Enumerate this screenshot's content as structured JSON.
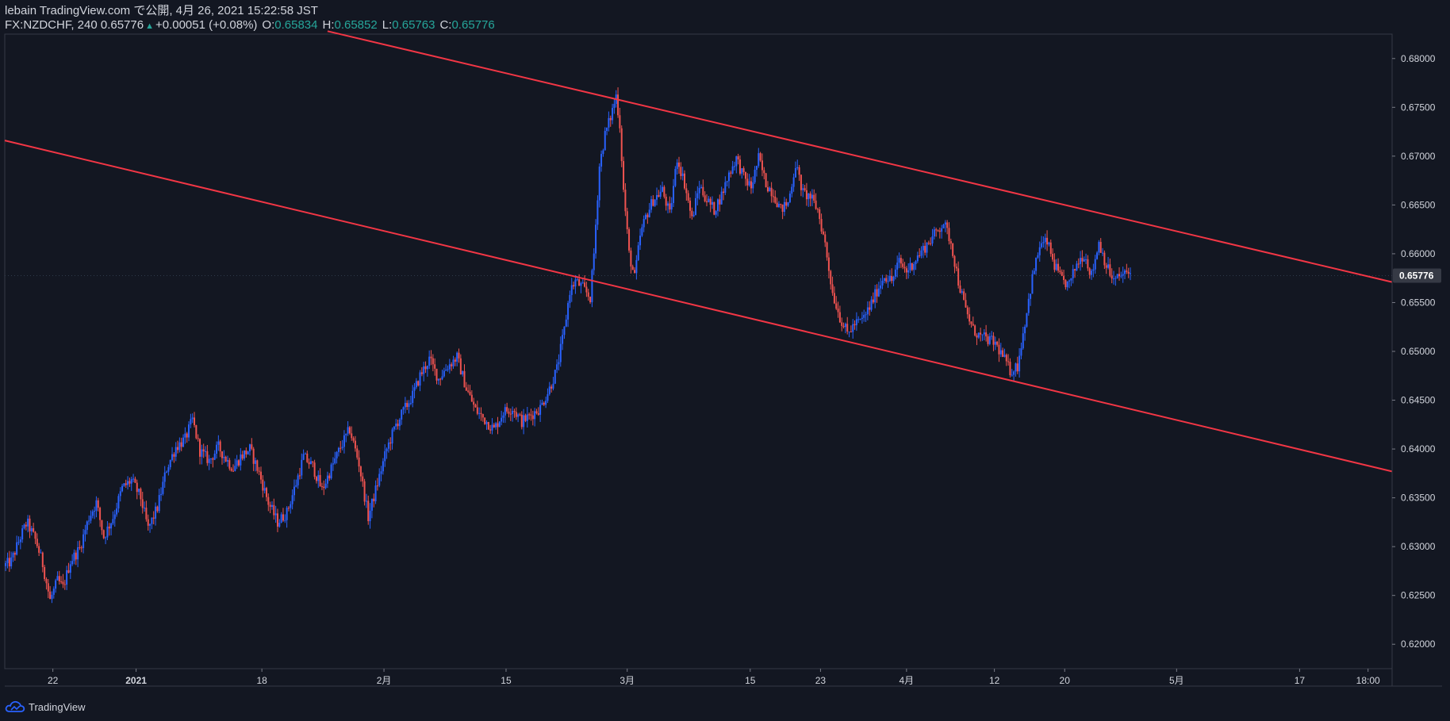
{
  "header": {
    "published_line": "lebain TradingView.com で公開, 4月 26, 2021 15:22:58 JST",
    "symbol_line": "FX:NZDCHF, 240 0.65776",
    "change": "+0.00051 (+0.08%)",
    "open_label": "O:",
    "open_value": "0.65834",
    "high_label": "H:",
    "high_value": "0.65852",
    "low_label": "L:",
    "low_value": "0.65763",
    "close_label": "C:",
    "close_value": "0.65776"
  },
  "footer": {
    "brand": "TradingView"
  },
  "colors": {
    "background": "#131722",
    "up": "#2962ff",
    "down": "#ef5350",
    "channel": "#f23645",
    "text": "#d1d4dc",
    "grid": "#2a2e39",
    "price_badge": "#363a45"
  },
  "chart_data": {
    "type": "candlestick",
    "symbol": "FX:NZDCHF",
    "timeframe": "240",
    "y_axis": {
      "range": [
        0.6175,
        0.6825
      ],
      "ticks": [
        "0.62000",
        "0.62500",
        "0.63000",
        "0.63500",
        "0.64000",
        "0.64500",
        "0.65000",
        "0.65500",
        "0.66000",
        "0.66500",
        "0.67000",
        "0.67500",
        "0.68000"
      ]
    },
    "last_price_label": "0.65776",
    "last_price": 0.65776,
    "x_axis_ticks": [
      {
        "label": "22",
        "bar": 52,
        "bold": false
      },
      {
        "label": "2021",
        "bar": 142,
        "bold": true
      },
      {
        "label": "18",
        "bar": 278,
        "bold": false
      },
      {
        "label": "2月",
        "bar": 410,
        "bold": false
      },
      {
        "label": "15",
        "bar": 542,
        "bold": false
      },
      {
        "label": "3月",
        "bar": 673,
        "bold": false
      },
      {
        "label": "15",
        "bar": 806,
        "bold": false
      },
      {
        "label": "23",
        "bar": 882,
        "bold": false
      },
      {
        "label": "4月",
        "bar": 975,
        "bold": false
      },
      {
        "label": "12",
        "bar": 1070,
        "bold": false
      },
      {
        "label": "20",
        "bar": 1146,
        "bold": false
      },
      {
        "label": "5月",
        "bar": 1267,
        "bold": false
      },
      {
        "label": "17",
        "bar": 1400,
        "bold": false
      },
      {
        "label": "18:00",
        "bar": 1474,
        "bold": false
      }
    ],
    "x_bar_range": [
      0,
      1500
    ],
    "channel_lines": [
      {
        "name": "upper",
        "bar1": 349,
        "price1": 0.6828,
        "bar2": 1500,
        "price2": 0.6571
      },
      {
        "name": "lower",
        "bar1": 0,
        "price1": 0.6716,
        "bar2": 1500,
        "price2": 0.6377
      }
    ],
    "anchors": [
      [
        0,
        0.628
      ],
      [
        8,
        0.6285
      ],
      [
        18,
        0.631
      ],
      [
        25,
        0.6325
      ],
      [
        35,
        0.6305
      ],
      [
        42,
        0.6282
      ],
      [
        50,
        0.6245
      ],
      [
        58,
        0.6265
      ],
      [
        64,
        0.6258
      ],
      [
        72,
        0.6285
      ],
      [
        82,
        0.6298
      ],
      [
        92,
        0.633
      ],
      [
        100,
        0.6345
      ],
      [
        108,
        0.631
      ],
      [
        118,
        0.633
      ],
      [
        128,
        0.636
      ],
      [
        138,
        0.6368
      ],
      [
        148,
        0.635
      ],
      [
        156,
        0.6318
      ],
      [
        166,
        0.634
      ],
      [
        176,
        0.638
      ],
      [
        186,
        0.6402
      ],
      [
        196,
        0.641
      ],
      [
        204,
        0.643
      ],
      [
        212,
        0.6398
      ],
      [
        222,
        0.6388
      ],
      [
        232,
        0.6402
      ],
      [
        240,
        0.639
      ],
      [
        248,
        0.638
      ],
      [
        256,
        0.6392
      ],
      [
        266,
        0.64
      ],
      [
        276,
        0.6375
      ],
      [
        286,
        0.6345
      ],
      [
        296,
        0.6325
      ],
      [
        306,
        0.6335
      ],
      [
        316,
        0.6365
      ],
      [
        324,
        0.6392
      ],
      [
        334,
        0.6382
      ],
      [
        344,
        0.6358
      ],
      [
        354,
        0.638
      ],
      [
        364,
        0.6402
      ],
      [
        374,
        0.642
      ],
      [
        384,
        0.6385
      ],
      [
        394,
        0.633
      ],
      [
        404,
        0.6365
      ],
      [
        414,
        0.64
      ],
      [
        424,
        0.6425
      ],
      [
        434,
        0.6442
      ],
      [
        442,
        0.6455
      ],
      [
        450,
        0.6475
      ],
      [
        460,
        0.6492
      ],
      [
        470,
        0.6472
      ],
      [
        480,
        0.6485
      ],
      [
        490,
        0.6494
      ],
      [
        500,
        0.6462
      ],
      [
        510,
        0.644
      ],
      [
        520,
        0.643
      ],
      [
        530,
        0.642
      ],
      [
        540,
        0.6438
      ],
      [
        550,
        0.6442
      ],
      [
        560,
        0.6428
      ],
      [
        570,
        0.6435
      ],
      [
        580,
        0.6442
      ],
      [
        590,
        0.6462
      ],
      [
        598,
        0.6482
      ],
      [
        606,
        0.6522
      ],
      [
        612,
        0.6562
      ],
      [
        618,
        0.6572
      ],
      [
        626,
        0.6565
      ],
      [
        634,
        0.6555
      ],
      [
        638,
        0.66
      ],
      [
        644,
        0.669
      ],
      [
        650,
        0.6722
      ],
      [
        656,
        0.674
      ],
      [
        662,
        0.6762
      ],
      [
        666,
        0.6732
      ],
      [
        670,
        0.6665
      ],
      [
        676,
        0.66
      ],
      [
        682,
        0.6575
      ],
      [
        688,
        0.6618
      ],
      [
        694,
        0.6638
      ],
      [
        702,
        0.6655
      ],
      [
        712,
        0.6665
      ],
      [
        720,
        0.664
      ],
      [
        728,
        0.6698
      ],
      [
        736,
        0.6672
      ],
      [
        744,
        0.6635
      ],
      [
        752,
        0.667
      ],
      [
        760,
        0.6655
      ],
      [
        768,
        0.6645
      ],
      [
        776,
        0.666
      ],
      [
        784,
        0.6682
      ],
      [
        792,
        0.6698
      ],
      [
        800,
        0.6678
      ],
      [
        808,
        0.6668
      ],
      [
        816,
        0.6698
      ],
      [
        824,
        0.6672
      ],
      [
        832,
        0.6662
      ],
      [
        840,
        0.6645
      ],
      [
        848,
        0.6652
      ],
      [
        856,
        0.6692
      ],
      [
        864,
        0.6662
      ],
      [
        872,
        0.6658
      ],
      [
        880,
        0.6645
      ],
      [
        888,
        0.661
      ],
      [
        896,
        0.656
      ],
      [
        904,
        0.6535
      ],
      [
        912,
        0.6518
      ],
      [
        920,
        0.6528
      ],
      [
        928,
        0.6532
      ],
      [
        936,
        0.6545
      ],
      [
        944,
        0.6562
      ],
      [
        952,
        0.6578
      ],
      [
        960,
        0.6572
      ],
      [
        968,
        0.6592
      ],
      [
        976,
        0.6582
      ],
      [
        984,
        0.6592
      ],
      [
        992,
        0.6602
      ],
      [
        1000,
        0.6612
      ],
      [
        1008,
        0.6622
      ],
      [
        1016,
        0.6632
      ],
      [
        1024,
        0.6612
      ],
      [
        1032,
        0.6572
      ],
      [
        1040,
        0.6542
      ],
      [
        1048,
        0.6522
      ],
      [
        1056,
        0.6515
      ],
      [
        1064,
        0.6512
      ],
      [
        1072,
        0.6508
      ],
      [
        1080,
        0.6495
      ],
      [
        1088,
        0.648
      ],
      [
        1096,
        0.6485
      ],
      [
        1104,
        0.653
      ],
      [
        1112,
        0.6575
      ],
      [
        1120,
        0.6608
      ],
      [
        1128,
        0.6612
      ],
      [
        1136,
        0.6588
      ],
      [
        1144,
        0.6572
      ],
      [
        1152,
        0.6568
      ],
      [
        1160,
        0.659
      ],
      [
        1168,
        0.66
      ],
      [
        1176,
        0.6578
      ],
      [
        1184,
        0.6612
      ],
      [
        1192,
        0.6588
      ],
      [
        1200,
        0.6572
      ],
      [
        1208,
        0.6578
      ],
      [
        1216,
        0.658
      ]
    ]
  }
}
